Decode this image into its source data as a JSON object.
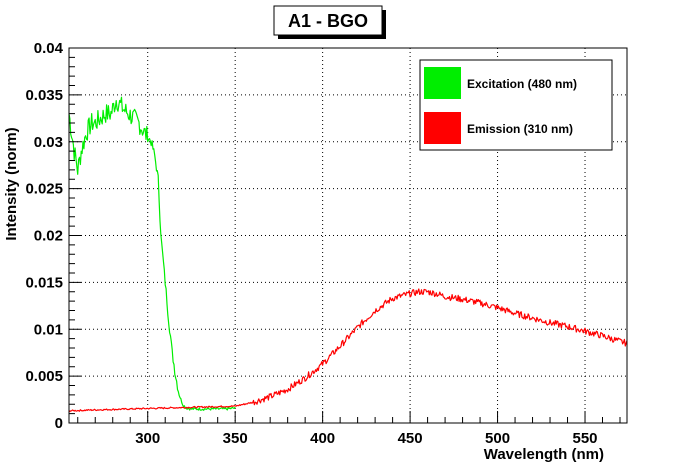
{
  "chart_data": {
    "type": "line",
    "title": "A1 - BGO",
    "xlabel": "Wavelength (nm)",
    "ylabel": "Intensity (norm)",
    "xlim": [
      255,
      574
    ],
    "ylim": [
      0,
      0.04
    ],
    "grid": true,
    "legend_position": "top-right",
    "x_ticks": [
      300,
      350,
      400,
      450,
      500,
      550
    ],
    "x_tick_labels": [
      "300",
      "350",
      "400",
      "450",
      "500",
      "550"
    ],
    "y_ticks": [
      0,
      0.005,
      0.01,
      0.015,
      0.02,
      0.025,
      0.03,
      0.035,
      0.04
    ],
    "y_tick_labels": [
      "0",
      "0.005",
      "0.01",
      "0.015",
      "0.02",
      "0.025",
      "0.03",
      "0.035",
      "0.04"
    ],
    "series": [
      {
        "name": "Excitation (480 nm)",
        "color": "#00ee00",
        "x": [
          255,
          258,
          260,
          262,
          265,
          268,
          270,
          273,
          276,
          279,
          282,
          284,
          286,
          289,
          292,
          295,
          298,
          300,
          302,
          304,
          306,
          307,
          308,
          310,
          312,
          314,
          316,
          318,
          320,
          322,
          325,
          330,
          335,
          340,
          345,
          350
        ],
        "y": [
          0.033,
          0.029,
          0.027,
          0.029,
          0.031,
          0.032,
          0.032,
          0.0325,
          0.033,
          0.033,
          0.0345,
          0.034,
          0.0335,
          0.033,
          0.0325,
          0.032,
          0.031,
          0.0305,
          0.03,
          0.0285,
          0.026,
          0.022,
          0.019,
          0.015,
          0.011,
          0.0075,
          0.005,
          0.003,
          0.002,
          0.0016,
          0.0015,
          0.0015,
          0.0015,
          0.0015,
          0.0015,
          0.0016
        ]
      },
      {
        "name": "Emission (310 nm)",
        "color": "#ff0000",
        "x": [
          255,
          270,
          290,
          310,
          330,
          350,
          360,
          370,
          380,
          390,
          400,
          410,
          420,
          430,
          440,
          450,
          455,
          460,
          465,
          470,
          480,
          490,
          500,
          510,
          520,
          530,
          540,
          550,
          560,
          570,
          574
        ],
        "y": [
          0.0013,
          0.0014,
          0.0015,
          0.0016,
          0.0017,
          0.0018,
          0.0022,
          0.0028,
          0.0036,
          0.0048,
          0.0063,
          0.0082,
          0.0102,
          0.012,
          0.0133,
          0.0138,
          0.014,
          0.014,
          0.0138,
          0.0135,
          0.0132,
          0.0128,
          0.0123,
          0.0117,
          0.0112,
          0.0107,
          0.0103,
          0.0098,
          0.0093,
          0.0087,
          0.0085
        ]
      }
    ]
  }
}
